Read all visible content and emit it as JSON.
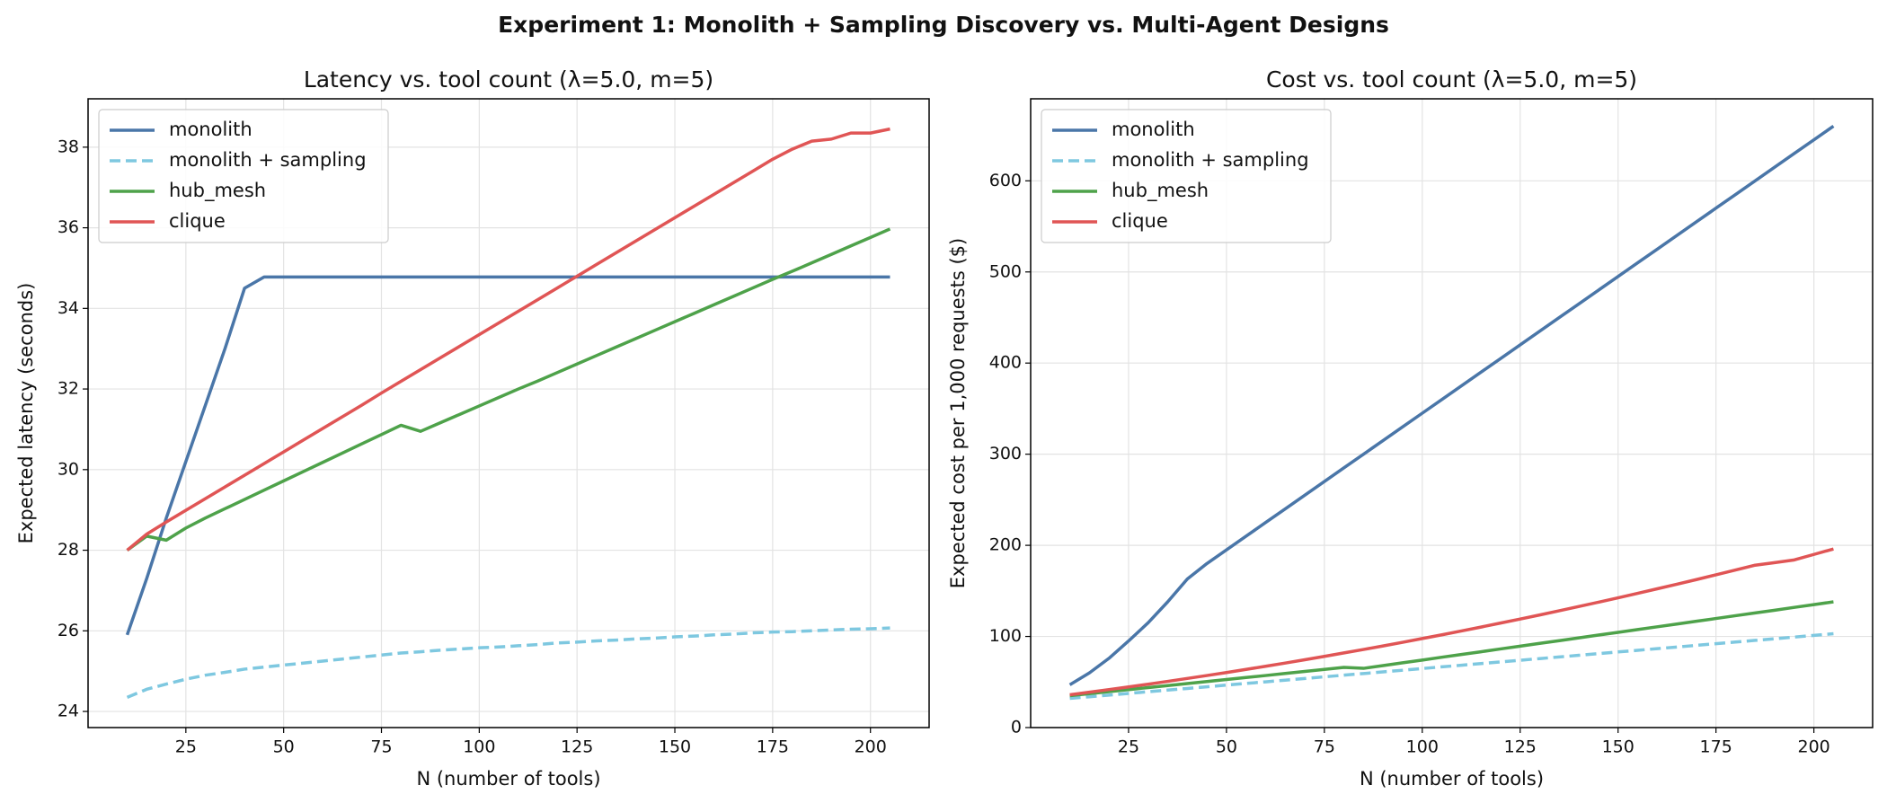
{
  "title": "Experiment 1: Monolith + Sampling Discovery vs. Multi-Agent Designs",
  "chart_data": [
    {
      "type": "line",
      "title": "Latency vs. tool count (λ=5.0, m=5)",
      "x_label": "N (number of tools)",
      "y_label": "Expected latency (seconds)",
      "x": [
        10,
        15,
        20,
        25,
        30,
        35,
        40,
        45,
        50,
        55,
        60,
        65,
        70,
        75,
        80,
        85,
        90,
        95,
        100,
        105,
        110,
        115,
        120,
        125,
        130,
        135,
        140,
        145,
        150,
        155,
        160,
        165,
        170,
        175,
        180,
        185,
        190,
        195,
        200,
        205
      ],
      "xlim": [
        0,
        215
      ],
      "xticks": [
        25,
        50,
        75,
        100,
        125,
        150,
        175,
        200
      ],
      "ylim": [
        23.6,
        39.2
      ],
      "yticks": [
        24,
        26,
        28,
        30,
        32,
        34,
        36,
        38
      ],
      "grid": true,
      "legend": "upper left",
      "series": [
        {
          "name": "monolith",
          "color": "#4a76a8",
          "linestyle": "solid",
          "values": [
            25.9,
            27.3,
            28.8,
            30.2,
            31.6,
            33.0,
            34.5,
            34.78,
            34.78,
            34.78,
            34.78,
            34.78,
            34.78,
            34.78,
            34.78,
            34.78,
            34.78,
            34.78,
            34.78,
            34.78,
            34.78,
            34.78,
            34.78,
            34.78,
            34.78,
            34.78,
            34.78,
            34.78,
            34.78,
            34.78,
            34.78,
            34.78,
            34.78,
            34.78,
            34.78,
            34.78,
            34.78,
            34.78,
            34.78,
            34.78
          ]
        },
        {
          "name": "monolith + sampling",
          "color": "#7ec8e0",
          "linestyle": "dashed",
          "values": [
            24.35,
            24.55,
            24.68,
            24.8,
            24.9,
            24.97,
            25.05,
            25.1,
            25.15,
            25.2,
            25.25,
            25.3,
            25.35,
            25.4,
            25.45,
            25.48,
            25.52,
            25.55,
            25.58,
            25.6,
            25.63,
            25.66,
            25.7,
            25.72,
            25.75,
            25.77,
            25.8,
            25.82,
            25.85,
            25.87,
            25.9,
            25.92,
            25.95,
            25.97,
            25.98,
            26.0,
            26.02,
            26.04,
            26.05,
            26.07
          ]
        },
        {
          "name": "hub_mesh",
          "color": "#4ea24a",
          "linestyle": "solid",
          "values": [
            28.0,
            28.35,
            28.25,
            28.55,
            28.8,
            29.03,
            29.26,
            29.49,
            29.72,
            29.95,
            30.18,
            30.41,
            30.64,
            30.87,
            31.1,
            30.95,
            31.16,
            31.37,
            31.58,
            31.79,
            32.0,
            32.2,
            32.41,
            32.62,
            32.83,
            33.04,
            33.25,
            33.46,
            33.67,
            33.88,
            34.09,
            34.3,
            34.51,
            34.72,
            34.92,
            35.13,
            35.34,
            35.55,
            35.76,
            35.97
          ]
        },
        {
          "name": "clique",
          "color": "#e05555",
          "linestyle": "solid",
          "values": [
            28.0,
            28.4,
            28.7,
            28.99,
            29.28,
            29.57,
            29.86,
            30.15,
            30.44,
            30.73,
            31.02,
            31.31,
            31.6,
            31.9,
            32.19,
            32.48,
            32.77,
            33.06,
            33.35,
            33.64,
            33.93,
            34.22,
            34.51,
            34.8,
            35.09,
            35.38,
            35.67,
            35.96,
            36.25,
            36.54,
            36.83,
            37.12,
            37.41,
            37.7,
            37.95,
            38.15,
            38.2,
            38.35,
            38.35,
            38.45
          ]
        }
      ]
    },
    {
      "type": "line",
      "title": "Cost vs. tool count (λ=5.0, m=5)",
      "x_label": "N (number of tools)",
      "y_label": "Expected cost per 1,000 requests ($)",
      "x": [
        10,
        15,
        20,
        25,
        30,
        35,
        40,
        45,
        50,
        55,
        60,
        65,
        70,
        75,
        80,
        85,
        90,
        95,
        100,
        105,
        110,
        115,
        120,
        125,
        130,
        135,
        140,
        145,
        150,
        155,
        160,
        165,
        170,
        175,
        180,
        185,
        190,
        195,
        200,
        205
      ],
      "xlim": [
        0,
        215
      ],
      "xticks": [
        25,
        50,
        75,
        100,
        125,
        150,
        175,
        200
      ],
      "ylim": [
        0,
        690
      ],
      "yticks": [
        0,
        100,
        200,
        300,
        400,
        500,
        600
      ],
      "grid": true,
      "legend": "upper left",
      "series": [
        {
          "name": "monolith",
          "color": "#4a76a8",
          "linestyle": "solid",
          "values": [
            47,
            60,
            76,
            95,
            115,
            138,
            163,
            180,
            195,
            210,
            225,
            240,
            255,
            270,
            285,
            300,
            315,
            330,
            345,
            360,
            375,
            390,
            405,
            420,
            435,
            450,
            465,
            480,
            495,
            510,
            525,
            540,
            555,
            570,
            585,
            600,
            615,
            630,
            645,
            660
          ]
        },
        {
          "name": "monolith + sampling",
          "color": "#7ec8e0",
          "linestyle": "dashed",
          "values": [
            32,
            33.8,
            35.6,
            37.5,
            39.3,
            41.1,
            42.9,
            44.7,
            46.6,
            48.4,
            50.2,
            52.0,
            53.8,
            55.7,
            57.5,
            59.3,
            61.1,
            62.9,
            64.8,
            66.6,
            68.4,
            70.2,
            72.0,
            73.9,
            75.7,
            77.5,
            79.3,
            81.1,
            83.0,
            84.8,
            86.6,
            88.4,
            90.2,
            92.1,
            93.9,
            95.7,
            97.5,
            99.3,
            101.2,
            103
          ]
        },
        {
          "name": "hub_mesh",
          "color": "#4ea24a",
          "linestyle": "solid",
          "values": [
            35,
            37.2,
            39.4,
            41.6,
            43.9,
            46.1,
            48.3,
            50.5,
            52.7,
            54.9,
            57.1,
            59.4,
            61.6,
            63.8,
            66,
            65,
            68.0,
            71.1,
            74.1,
            77.2,
            80.2,
            83.2,
            86.3,
            89.3,
            92.4,
            95.4,
            98.4,
            101.5,
            104.5,
            107.6,
            110.6,
            113.6,
            116.7,
            119.7,
            122.8,
            125.8,
            128.8,
            131.9,
            134.9,
            138
          ]
        },
        {
          "name": "clique",
          "color": "#e05555",
          "linestyle": "solid",
          "values": [
            36,
            38.8,
            41.7,
            44.6,
            47.6,
            50.7,
            53.9,
            57.1,
            60.4,
            63.8,
            67.3,
            70.8,
            74.4,
            78.1,
            81.9,
            85.7,
            89.6,
            93.6,
            97.7,
            101.8,
            106,
            110.3,
            114.7,
            119.1,
            123.6,
            128.2,
            132.9,
            137.6,
            142.4,
            147.3,
            152.3,
            157.3,
            162.4,
            167.6,
            172.9,
            178.2,
            181,
            184,
            190,
            196
          ]
        }
      ]
    }
  ]
}
